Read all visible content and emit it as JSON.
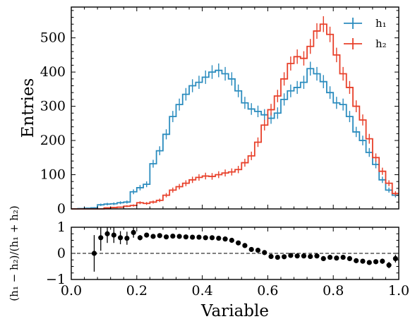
{
  "chart_data": [
    {
      "type": "histogram",
      "panel": "main",
      "xlim": [
        0,
        1
      ],
      "ylim": [
        0,
        590
      ],
      "ylabel": "Entries",
      "xlabel": "",
      "bins": 50,
      "bin_width": 0.02,
      "yticks": [
        "0",
        "100",
        "200",
        "300",
        "400",
        "500"
      ],
      "legend": {
        "position": "top-right",
        "entries": [
          "h₁",
          "h₂"
        ]
      },
      "series": [
        {
          "name": "h₁",
          "color": "#2b8cbe",
          "values": [
            0,
            1,
            2,
            3,
            12,
            14,
            15,
            18,
            20,
            50,
            62,
            72,
            132,
            170,
            218,
            270,
            305,
            335,
            360,
            370,
            385,
            400,
            405,
            395,
            380,
            345,
            310,
            292,
            285,
            275,
            265,
            280,
            320,
            345,
            355,
            370,
            410,
            395,
            372,
            340,
            310,
            305,
            270,
            225,
            200,
            165,
            130,
            85,
            55,
            40
          ]
        },
        {
          "name": "h₂",
          "color": "#e8402a",
          "values": [
            0,
            0,
            0,
            0,
            0,
            3,
            4,
            5,
            8,
            10,
            18,
            16,
            20,
            25,
            40,
            55,
            65,
            75,
            85,
            92,
            96,
            95,
            100,
            105,
            108,
            115,
            135,
            155,
            195,
            245,
            290,
            330,
            380,
            425,
            445,
            440,
            475,
            520,
            540,
            510,
            450,
            395,
            355,
            300,
            260,
            205,
            150,
            110,
            75,
            45
          ]
        }
      ]
    },
    {
      "type": "scatter",
      "panel": "ratio",
      "xlim": [
        0,
        1
      ],
      "ylim": [
        -1,
        1
      ],
      "xlabel": "Variable",
      "ylabel": "(h₁ − h₂)/(h₁ + h₂)",
      "xticks": [
        "0.0",
        "0.2",
        "0.4",
        "0.6",
        "0.8",
        "1.0"
      ],
      "yticks": [
        "−1",
        "0",
        "1"
      ],
      "reference_line": 0,
      "color": "#000000",
      "x": [
        0.07,
        0.09,
        0.11,
        0.13,
        0.15,
        0.17,
        0.19,
        0.21,
        0.23,
        0.25,
        0.27,
        0.29,
        0.31,
        0.33,
        0.35,
        0.37,
        0.39,
        0.41,
        0.43,
        0.45,
        0.47,
        0.49,
        0.51,
        0.53,
        0.55,
        0.57,
        0.59,
        0.61,
        0.63,
        0.65,
        0.67,
        0.69,
        0.71,
        0.73,
        0.75,
        0.77,
        0.79,
        0.81,
        0.83,
        0.85,
        0.87,
        0.89,
        0.91,
        0.93,
        0.95,
        0.97,
        0.99
      ],
      "y": [
        0.0,
        0.6,
        0.75,
        0.7,
        0.6,
        0.58,
        0.8,
        0.6,
        0.7,
        0.65,
        0.68,
        0.63,
        0.66,
        0.65,
        0.63,
        0.62,
        0.62,
        0.6,
        0.6,
        0.58,
        0.55,
        0.5,
        0.4,
        0.3,
        0.15,
        0.12,
        0.03,
        -0.12,
        -0.15,
        -0.13,
        -0.08,
        -0.1,
        -0.1,
        -0.12,
        -0.1,
        -0.2,
        -0.15,
        -0.18,
        -0.15,
        -0.2,
        -0.28,
        -0.3,
        -0.35,
        -0.32,
        -0.3,
        -0.45,
        -0.2
      ],
      "yerr": [
        0.7,
        0.5,
        0.35,
        0.3,
        0.25,
        0.25,
        0.2,
        0.1,
        0.08,
        0.06,
        0.05,
        0.05,
        0.04,
        0.04,
        0.04,
        0.04,
        0.04,
        0.04,
        0.04,
        0.04,
        0.04,
        0.04,
        0.04,
        0.04,
        0.04,
        0.04,
        0.04,
        0.04,
        0.04,
        0.04,
        0.04,
        0.04,
        0.04,
        0.04,
        0.04,
        0.04,
        0.04,
        0.04,
        0.04,
        0.05,
        0.05,
        0.06,
        0.07,
        0.08,
        0.1,
        0.12,
        0.15
      ]
    }
  ]
}
